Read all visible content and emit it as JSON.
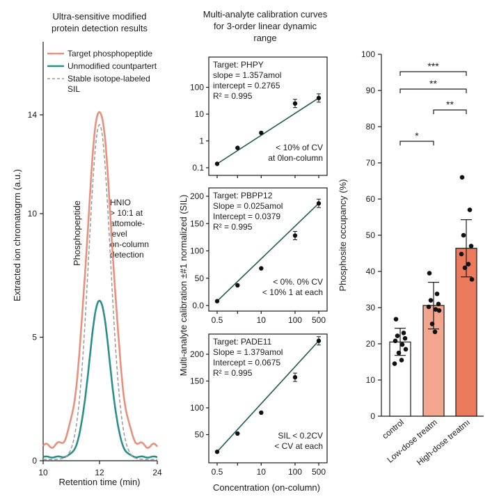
{
  "chart_data": [
    {
      "type": "line",
      "title": [
        "Ultra-sensitive modified",
        "protein detection results"
      ],
      "xlabel": "Retention time (min)",
      "ylabel": "Extracted ion chromatogrm (a.u.)",
      "xticks": [
        "10",
        "12",
        "24"
      ],
      "yticks": [
        "0",
        "5",
        "10",
        "14"
      ],
      "legend": [
        "Target phosphopeptide",
        "Unmodified countpartert",
        "Stable isotope-labeled",
        "SIL"
      ],
      "peak_label": "Phosphopeptide",
      "annotation": [
        "HNIO",
        "> 10:1 at",
        "attomole-",
        "level",
        "on-column",
        "detection"
      ],
      "series": [
        {
          "name": "Target phosphopeptide",
          "color": "#e8907a",
          "baseline": 0.6,
          "peak": 14.2,
          "peak_x": 12
        },
        {
          "name": "Unmodified countpartert",
          "color": "#2a8f8a",
          "baseline": 0.15,
          "peak": 6.5,
          "peak_x": 12
        },
        {
          "name": "Stable isotope-labeled SIL",
          "color": "#999999",
          "baseline": 0.05,
          "peak": 13.6,
          "peak_x": 12
        }
      ]
    },
    {
      "type": "scatter",
      "title": [
        "Multi-analyte calibration curves",
        "for 3-order linear dynamic",
        "range"
      ],
      "ylabel": "Multi-analyte calibration ±#1 normalized (SIL)",
      "xlabel": "Concentration (on-column)",
      "xticks": [
        "0.5",
        "5",
        "10",
        "100",
        "500"
      ],
      "panels": [
        {
          "name": "PHPY",
          "yscale": "log",
          "yticks": [
            "0.1",
            "1",
            "10",
            "100"
          ],
          "lines": [
            "Target: PHPY",
            "slope = 1.357amol",
            "intercept = 0.2765",
            "R² = 0.995"
          ],
          "note": [
            "< 10% of CV",
            "at 0lon-column"
          ],
          "points": [
            {
              "x": 0.5,
              "y": 0.14
            },
            {
              "x": 2,
              "y": 0.55
            },
            {
              "x": 10,
              "y": 2.0
            },
            {
              "x": 100,
              "y": 25
            },
            {
              "x": 500,
              "y": 40
            }
          ]
        },
        {
          "name": "PBPP12",
          "yscale": "linear",
          "yticks": [
            "0.0",
            "50",
            "100",
            "150",
            "200"
          ],
          "lines": [
            "Target: PBPP12",
            "Slope = 0.025amol",
            "Intercept = 0.0379",
            "R² = 0.995"
          ],
          "note": [
            "< 0%. 0% CV",
            "< 10% 1 at each"
          ],
          "points": [
            {
              "x": 0.5,
              "y": 8
            },
            {
              "x": 2,
              "y": 37
            },
            {
              "x": 10,
              "y": 68
            },
            {
              "x": 100,
              "y": 128
            },
            {
              "x": 500,
              "y": 187
            }
          ]
        },
        {
          "name": "PADE11",
          "yscale": "linear",
          "yticks": [
            "50",
            "100",
            "150",
            "200"
          ],
          "lines": [
            "Target: PADE11",
            "Slope = 1.379amol",
            "Intercept = 0.0675",
            "R² = 0.995"
          ],
          "note": [
            "SIL < 0.2CV",
            "< CV at each"
          ],
          "points": [
            {
              "x": 0.5,
              "y": 18
            },
            {
              "x": 2,
              "y": 52
            },
            {
              "x": 10,
              "y": 91
            },
            {
              "x": 100,
              "y": 157
            },
            {
              "x": 500,
              "y": 225
            }
          ]
        }
      ]
    },
    {
      "type": "bar",
      "ylabel": "Phosphosite occupancy (%)",
      "ylim": [
        0,
        100
      ],
      "yticks": [
        "0",
        "10",
        "20",
        "30",
        "40",
        "50",
        "60",
        "70",
        "80",
        "90",
        "100"
      ],
      "categories": [
        "control",
        "Low-dose treatm",
        "High-dose treatmı"
      ],
      "values": [
        20.5,
        30.6,
        46.4
      ],
      "errors": [
        [
          16.8,
          24.3
        ],
        [
          24.1,
          37.0
        ],
        [
          38.5,
          54.3
        ]
      ],
      "colors": [
        "#ffffff",
        "#f3a68e",
        "#ec7b5e"
      ],
      "points": [
        [
          26.8,
          23.0,
          22.2,
          21.5,
          20.8,
          19.8,
          18.5,
          17.5,
          15.5,
          14.5
        ],
        [
          39.5,
          33.8,
          32.0,
          31.0,
          30.2,
          29.5,
          29.2,
          25.5,
          23.3
        ],
        [
          66.0,
          57.0,
          50.0,
          47.0,
          44.8,
          42.0,
          37.8,
          41.0
        ]
      ],
      "significance": [
        "***",
        "**",
        "**",
        "*"
      ]
    }
  ]
}
